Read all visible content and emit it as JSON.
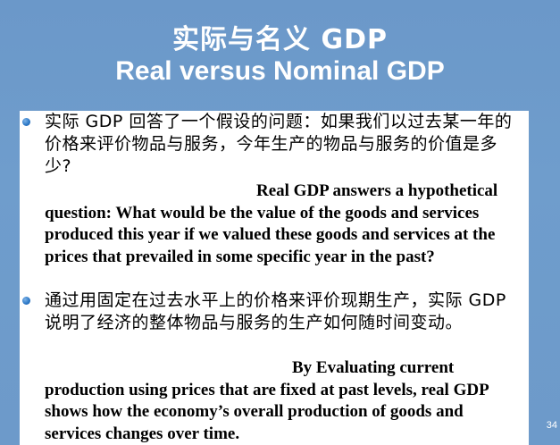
{
  "title": {
    "chinese": "实际与名义 GDP",
    "english": "Real versus Nominal GDP"
  },
  "bullets": [
    {
      "chinese": "实际 GDP 回答了一个假设的问题：如果我们以过去某一年的价格来评价物品与服务，今年生产的物品与服务的价值是多少?",
      "english": "Real GDP answers a hypothetical question: What would be the value of the goods and services produced this year if we valued these goods and services at the prices that prevailed in some specific year in the past?"
    },
    {
      "chinese": "通过用固定在过去水平上的价格来评价现期生产，实际 GDP 说明了经济的整体物品与服务的生产如何随时间变动。",
      "english": "By Evaluating current production using prices that are fixed at past levels, real GDP shows how the economy’s overall production of goods and services changes over time."
    }
  ],
  "page_number": "34"
}
